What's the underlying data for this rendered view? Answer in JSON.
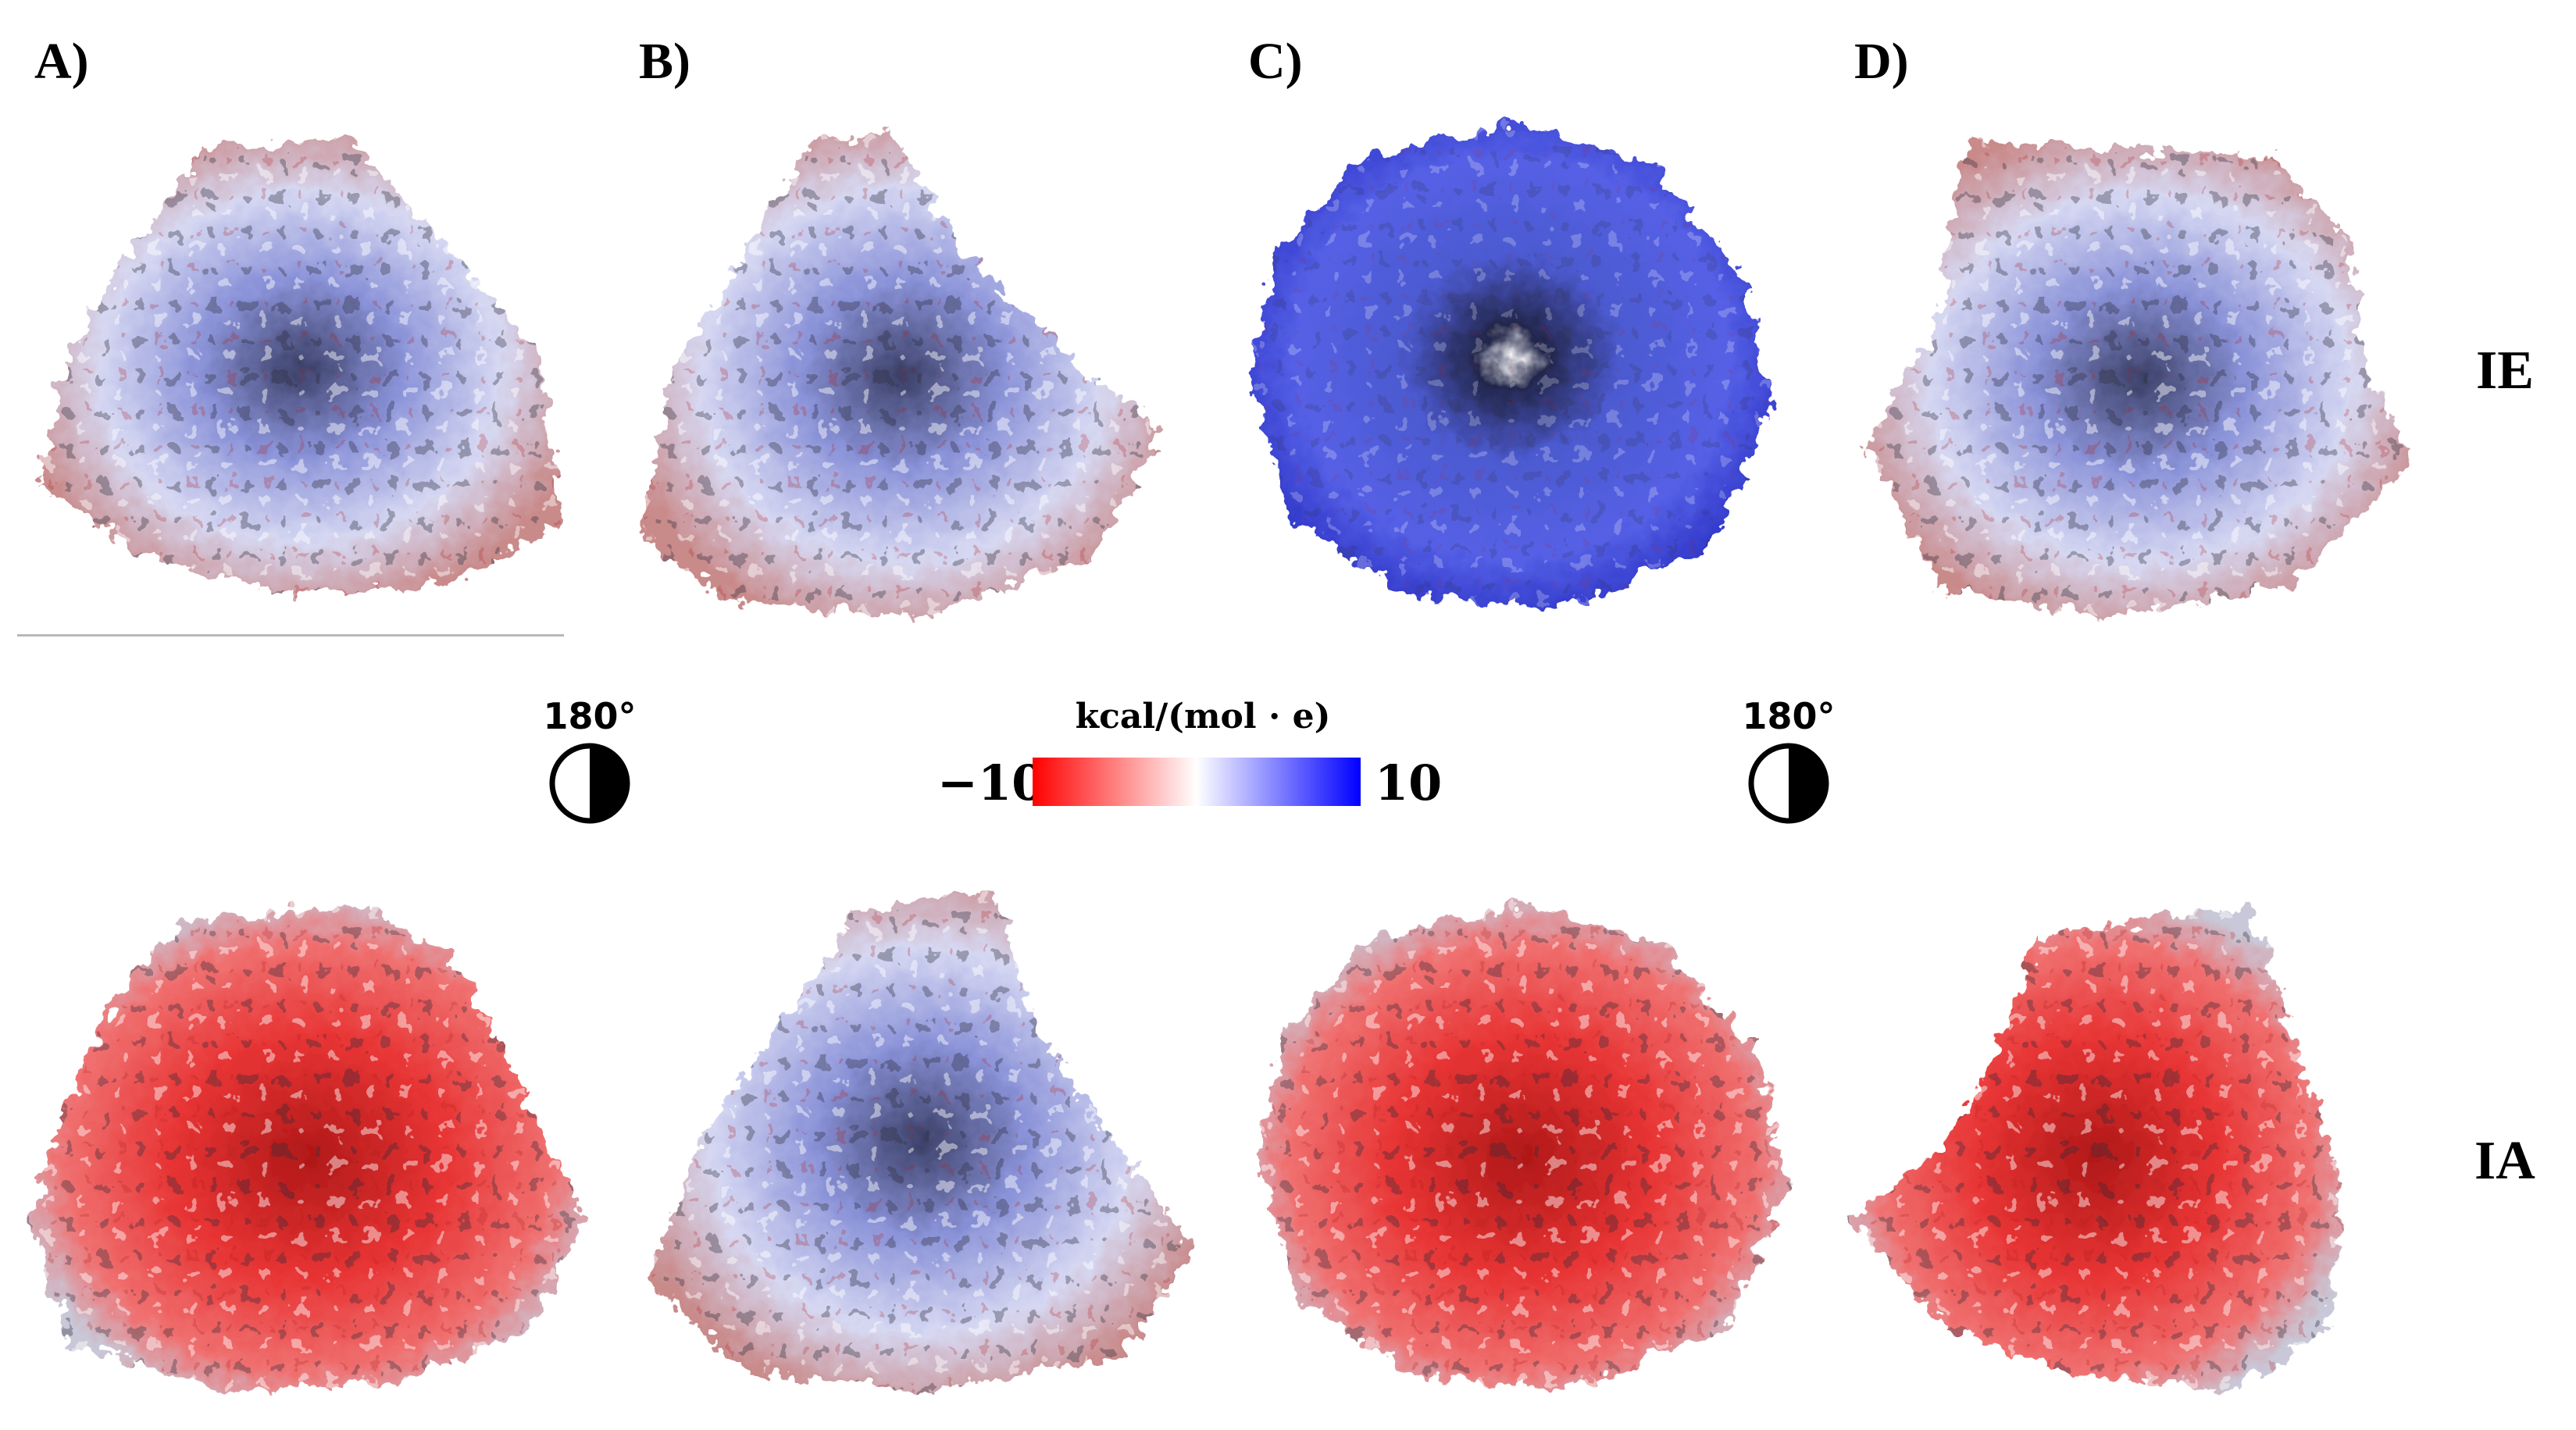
{
  "panels": [
    {
      "label": "A)"
    },
    {
      "label": "B)"
    },
    {
      "label": "C)"
    },
    {
      "label": "D)"
    }
  ],
  "rows": [
    {
      "label": "IE"
    },
    {
      "label": "IA"
    }
  ],
  "rotation": {
    "label": "180°"
  },
  "scale": {
    "title": "kcal/(mol · e)",
    "min": "−10",
    "max": "10",
    "colors": {
      "negative": "#ff0000",
      "neutral": "#ffffff",
      "positive": "#0000ff"
    }
  },
  "surfaces": [
    {
      "panel": "A",
      "row": "IE",
      "tone": "mixed-blue"
    },
    {
      "panel": "B",
      "row": "IE",
      "tone": "mixed-blue"
    },
    {
      "panel": "C",
      "row": "IE",
      "tone": "blue"
    },
    {
      "panel": "D",
      "row": "IE",
      "tone": "mixed-blue"
    },
    {
      "panel": "A",
      "row": "IA",
      "tone": "red"
    },
    {
      "panel": "B",
      "row": "IA",
      "tone": "mixed-blue"
    },
    {
      "panel": "C",
      "row": "IA",
      "tone": "red"
    },
    {
      "panel": "D",
      "row": "IA",
      "tone": "red"
    }
  ]
}
